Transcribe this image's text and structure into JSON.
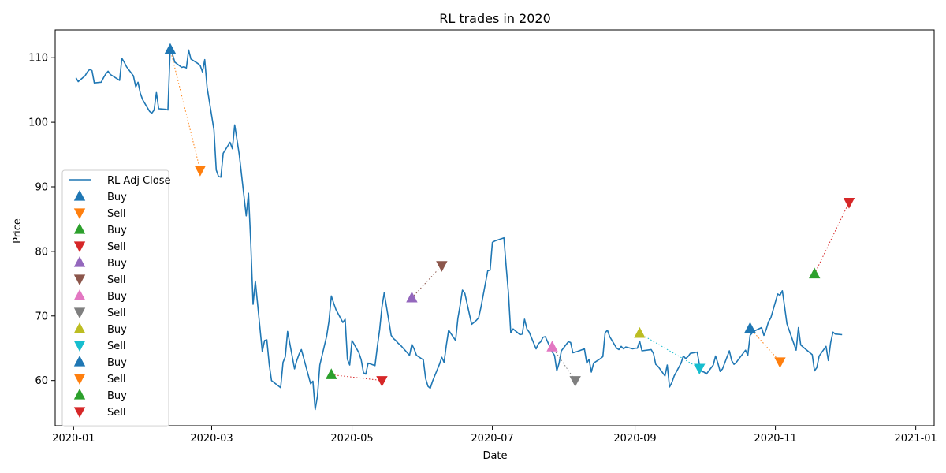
{
  "chart_data": {
    "type": "line",
    "title": "RL trades in 2020",
    "xlabel": "Date",
    "ylabel": "Price",
    "xlim": [
      "2019-12-24",
      "2021-01-09"
    ],
    "ylim": [
      53,
      114.3
    ],
    "grid": false,
    "legend_position": "left",
    "x_ticks": [
      "2020-01-01",
      "2020-03-01",
      "2020-05-01",
      "2020-07-01",
      "2020-09-01",
      "2020-11-01",
      "2021-01-01"
    ],
    "x_tick_labels": [
      "2020-01",
      "2020-03",
      "2020-05",
      "2020-07",
      "2020-09",
      "2020-11",
      "2021-01"
    ],
    "y_ticks": [
      60,
      70,
      80,
      90,
      100,
      110
    ],
    "line_series": {
      "name": "RL Adj Close",
      "color": "#1f77b4",
      "points": [
        [
          "2020-01-02",
          106.9
        ],
        [
          "2020-01-03",
          106.3
        ],
        [
          "2020-01-06",
          107.2
        ],
        [
          "2020-01-07",
          107.8
        ],
        [
          "2020-01-08",
          108.2
        ],
        [
          "2020-01-09",
          108.0
        ],
        [
          "2020-01-10",
          106.1
        ],
        [
          "2020-01-13",
          106.2
        ],
        [
          "2020-01-14",
          106.9
        ],
        [
          "2020-01-15",
          107.5
        ],
        [
          "2020-01-16",
          107.9
        ],
        [
          "2020-01-17",
          107.4
        ],
        [
          "2020-01-21",
          106.5
        ],
        [
          "2020-01-22",
          109.9
        ],
        [
          "2020-01-23",
          109.3
        ],
        [
          "2020-01-24",
          108.6
        ],
        [
          "2020-01-27",
          107.2
        ],
        [
          "2020-01-28",
          105.5
        ],
        [
          "2020-01-29",
          106.2
        ],
        [
          "2020-01-30",
          104.5
        ],
        [
          "2020-01-31",
          103.5
        ],
        [
          "2020-02-03",
          101.7
        ],
        [
          "2020-02-04",
          101.4
        ],
        [
          "2020-02-05",
          101.9
        ],
        [
          "2020-02-06",
          104.6
        ],
        [
          "2020-02-07",
          102.1
        ],
        [
          "2020-02-10",
          102.0
        ],
        [
          "2020-02-11",
          101.9
        ],
        [
          "2020-02-12",
          111.3
        ],
        [
          "2020-02-13",
          110.5
        ],
        [
          "2020-02-14",
          109.3
        ],
        [
          "2020-02-17",
          108.5
        ],
        [
          "2020-02-18",
          108.6
        ],
        [
          "2020-02-19",
          108.4
        ],
        [
          "2020-02-20",
          111.2
        ],
        [
          "2020-02-21",
          109.8
        ],
        [
          "2020-02-24",
          109.1
        ],
        [
          "2020-02-25",
          108.8
        ],
        [
          "2020-02-26",
          107.8
        ],
        [
          "2020-02-27",
          109.7
        ],
        [
          "2020-02-28",
          105.5
        ],
        [
          "2020-03-02",
          98.8
        ],
        [
          "2020-03-03",
          92.6
        ],
        [
          "2020-03-04",
          91.6
        ],
        [
          "2020-03-05",
          91.5
        ],
        [
          "2020-03-06",
          95.2
        ],
        [
          "2020-03-09",
          96.9
        ],
        [
          "2020-03-10",
          95.9
        ],
        [
          "2020-03-11",
          99.6
        ],
        [
          "2020-03-12",
          97.3
        ],
        [
          "2020-03-13",
          95.0
        ],
        [
          "2020-03-16",
          85.5
        ],
        [
          "2020-03-17",
          89.0
        ],
        [
          "2020-03-18",
          81.3
        ],
        [
          "2020-03-19",
          71.8
        ],
        [
          "2020-03-20",
          75.4
        ],
        [
          "2020-03-23",
          64.5
        ],
        [
          "2020-03-24",
          66.2
        ],
        [
          "2020-03-25",
          66.3
        ],
        [
          "2020-03-26",
          62.5
        ],
        [
          "2020-03-27",
          60.0
        ],
        [
          "2020-03-31",
          58.9
        ],
        [
          "2020-04-01",
          62.8
        ],
        [
          "2020-04-02",
          63.7
        ],
        [
          "2020-04-03",
          67.6
        ],
        [
          "2020-04-06",
          61.8
        ],
        [
          "2020-04-07",
          63.1
        ],
        [
          "2020-04-08",
          64.1
        ],
        [
          "2020-04-09",
          64.8
        ],
        [
          "2020-04-13",
          59.5
        ],
        [
          "2020-04-14",
          59.9
        ],
        [
          "2020-04-15",
          55.5
        ],
        [
          "2020-04-16",
          57.6
        ],
        [
          "2020-04-17",
          62.4
        ],
        [
          "2020-04-20",
          66.9
        ],
        [
          "2020-04-21",
          69.2
        ],
        [
          "2020-04-22",
          73.1
        ],
        [
          "2020-04-23",
          72.0
        ],
        [
          "2020-04-24",
          71.0
        ],
        [
          "2020-04-27",
          69.0
        ],
        [
          "2020-04-28",
          69.5
        ],
        [
          "2020-04-29",
          63.3
        ],
        [
          "2020-04-30",
          62.4
        ],
        [
          "2020-05-01",
          66.2
        ],
        [
          "2020-05-04",
          64.3
        ],
        [
          "2020-05-05",
          63.2
        ],
        [
          "2020-05-06",
          61.2
        ],
        [
          "2020-05-07",
          61.0
        ],
        [
          "2020-05-08",
          62.7
        ],
        [
          "2020-05-11",
          62.3
        ],
        [
          "2020-05-12",
          65.2
        ],
        [
          "2020-05-13",
          67.9
        ],
        [
          "2020-05-14",
          71.4
        ],
        [
          "2020-05-15",
          73.6
        ],
        [
          "2020-05-18",
          67.0
        ],
        [
          "2020-05-19",
          66.5
        ],
        [
          "2020-05-20",
          66.2
        ],
        [
          "2020-05-21",
          65.8
        ],
        [
          "2020-05-22",
          65.5
        ],
        [
          "2020-05-26",
          63.9
        ],
        [
          "2020-05-27",
          65.6
        ],
        [
          "2020-05-28",
          64.9
        ],
        [
          "2020-05-29",
          63.9
        ],
        [
          "2020-06-01",
          63.2
        ],
        [
          "2020-06-02",
          60.3
        ],
        [
          "2020-06-03",
          59.1
        ],
        [
          "2020-06-04",
          58.8
        ],
        [
          "2020-06-05",
          59.9
        ],
        [
          "2020-06-08",
          62.5
        ],
        [
          "2020-06-09",
          63.6
        ],
        [
          "2020-06-10",
          62.8
        ],
        [
          "2020-06-11",
          65.5
        ],
        [
          "2020-06-12",
          67.8
        ],
        [
          "2020-06-15",
          66.2
        ],
        [
          "2020-06-16",
          69.6
        ],
        [
          "2020-06-17",
          71.7
        ],
        [
          "2020-06-18",
          74.0
        ],
        [
          "2020-06-19",
          73.5
        ],
        [
          "2020-06-22",
          68.7
        ],
        [
          "2020-06-23",
          69.0
        ],
        [
          "2020-06-24",
          69.3
        ],
        [
          "2020-06-25",
          69.7
        ],
        [
          "2020-06-26",
          71.3
        ],
        [
          "2020-06-29",
          77.0
        ],
        [
          "2020-06-30",
          77.1
        ],
        [
          "2020-07-01",
          81.4
        ],
        [
          "2020-07-02",
          81.6
        ],
        [
          "2020-07-06",
          82.1
        ],
        [
          "2020-07-07",
          77.6
        ],
        [
          "2020-07-08",
          73.5
        ],
        [
          "2020-07-09",
          67.4
        ],
        [
          "2020-07-10",
          68.0
        ],
        [
          "2020-07-13",
          67.1
        ],
        [
          "2020-07-14",
          67.2
        ],
        [
          "2020-07-15",
          69.5
        ],
        [
          "2020-07-16",
          68.0
        ],
        [
          "2020-07-17",
          67.5
        ],
        [
          "2020-07-20",
          64.9
        ],
        [
          "2020-07-21",
          65.7
        ],
        [
          "2020-07-22",
          66.0
        ],
        [
          "2020-07-23",
          66.7
        ],
        [
          "2020-07-24",
          66.8
        ],
        [
          "2020-07-27",
          64.4
        ],
        [
          "2020-07-28",
          63.9
        ],
        [
          "2020-07-29",
          61.5
        ],
        [
          "2020-07-30",
          62.7
        ],
        [
          "2020-07-31",
          64.6
        ],
        [
          "2020-08-03",
          66.0
        ],
        [
          "2020-08-04",
          65.9
        ],
        [
          "2020-08-05",
          64.3
        ],
        [
          "2020-08-06",
          64.4
        ],
        [
          "2020-08-07",
          64.5
        ],
        [
          "2020-08-10",
          64.9
        ],
        [
          "2020-08-11",
          62.7
        ],
        [
          "2020-08-12",
          63.3
        ],
        [
          "2020-08-13",
          61.3
        ],
        [
          "2020-08-14",
          62.7
        ],
        [
          "2020-08-17",
          63.4
        ],
        [
          "2020-08-18",
          63.7
        ],
        [
          "2020-08-19",
          67.4
        ],
        [
          "2020-08-20",
          67.8
        ],
        [
          "2020-08-21",
          66.8
        ],
        [
          "2020-08-24",
          65.0
        ],
        [
          "2020-08-25",
          64.8
        ],
        [
          "2020-08-26",
          65.3
        ],
        [
          "2020-08-27",
          64.9
        ],
        [
          "2020-08-28",
          65.2
        ],
        [
          "2020-08-31",
          64.9
        ],
        [
          "2020-09-01",
          65.0
        ],
        [
          "2020-09-02",
          65.0
        ],
        [
          "2020-09-03",
          66.1
        ],
        [
          "2020-09-04",
          64.6
        ],
        [
          "2020-09-08",
          64.8
        ],
        [
          "2020-09-09",
          64.2
        ],
        [
          "2020-09-10",
          62.5
        ],
        [
          "2020-09-11",
          62.2
        ],
        [
          "2020-09-14",
          60.7
        ],
        [
          "2020-09-15",
          62.4
        ],
        [
          "2020-09-16",
          59.0
        ],
        [
          "2020-09-17",
          59.7
        ],
        [
          "2020-09-18",
          60.7
        ],
        [
          "2020-09-21",
          62.7
        ],
        [
          "2020-09-22",
          63.8
        ],
        [
          "2020-09-23",
          63.4
        ],
        [
          "2020-09-24",
          63.7
        ],
        [
          "2020-09-25",
          64.2
        ],
        [
          "2020-09-28",
          64.4
        ],
        [
          "2020-09-29",
          62.4
        ],
        [
          "2020-09-30",
          61.4
        ],
        [
          "2020-10-01",
          61.3
        ],
        [
          "2020-10-02",
          61.0
        ],
        [
          "2020-10-05",
          62.4
        ],
        [
          "2020-10-06",
          63.8
        ],
        [
          "2020-10-07",
          62.7
        ],
        [
          "2020-10-08",
          61.4
        ],
        [
          "2020-10-09",
          61.8
        ],
        [
          "2020-10-12",
          64.6
        ],
        [
          "2020-10-13",
          63.1
        ],
        [
          "2020-10-14",
          62.5
        ],
        [
          "2020-10-15",
          62.8
        ],
        [
          "2020-10-16",
          63.3
        ],
        [
          "2020-10-19",
          64.7
        ],
        [
          "2020-10-20",
          63.9
        ],
        [
          "2020-10-21",
          67.0
        ],
        [
          "2020-10-22",
          67.4
        ],
        [
          "2020-10-23",
          67.7
        ],
        [
          "2020-10-26",
          68.2
        ],
        [
          "2020-10-27",
          67.0
        ],
        [
          "2020-10-28",
          67.9
        ],
        [
          "2020-10-29",
          69.1
        ],
        [
          "2020-10-30",
          69.7
        ],
        [
          "2020-11-02",
          73.4
        ],
        [
          "2020-11-03",
          73.2
        ],
        [
          "2020-11-04",
          73.9
        ],
        [
          "2020-11-05",
          71.4
        ],
        [
          "2020-11-06",
          68.8
        ],
        [
          "2020-11-09",
          65.7
        ],
        [
          "2020-11-10",
          64.7
        ],
        [
          "2020-11-11",
          68.2
        ],
        [
          "2020-11-12",
          65.5
        ],
        [
          "2020-11-13",
          65.2
        ],
        [
          "2020-11-16",
          64.3
        ],
        [
          "2020-11-17",
          64.0
        ],
        [
          "2020-11-18",
          61.5
        ],
        [
          "2020-11-19",
          62.0
        ],
        [
          "2020-11-20",
          63.8
        ],
        [
          "2020-11-23",
          65.3
        ],
        [
          "2020-11-24",
          63.1
        ],
        [
          "2020-11-25",
          65.9
        ],
        [
          "2020-11-26",
          67.5
        ],
        [
          "2020-11-27",
          67.2
        ],
        [
          "2020-11-30",
          67.1
        ]
      ]
    },
    "markers": [
      {
        "name": "Buy",
        "kind": "buy",
        "color": "#1f77b4",
        "date": "2020-02-12",
        "price": 111.3
      },
      {
        "name": "Sell",
        "kind": "sell",
        "color": "#ff7f0e",
        "date": "2020-02-25",
        "price": 92.6
      },
      {
        "name": "Buy",
        "kind": "buy",
        "color": "#2ca02c",
        "date": "2020-04-22",
        "price": 60.9
      },
      {
        "name": "Sell",
        "kind": "sell",
        "color": "#d62728",
        "date": "2020-05-14",
        "price": 60.0
      },
      {
        "name": "Buy",
        "kind": "buy",
        "color": "#9467bd",
        "date": "2020-05-27",
        "price": 72.8
      },
      {
        "name": "Sell",
        "kind": "sell",
        "color": "#8c564b",
        "date": "2020-06-09",
        "price": 77.8
      },
      {
        "name": "Buy",
        "kind": "buy",
        "color": "#e377c2",
        "date": "2020-07-27",
        "price": 65.2
      },
      {
        "name": "Sell",
        "kind": "sell",
        "color": "#7f7f7f",
        "date": "2020-08-06",
        "price": 60.0
      },
      {
        "name": "Buy",
        "kind": "buy",
        "color": "#bcbd22",
        "date": "2020-09-03",
        "price": 67.3
      },
      {
        "name": "Sell",
        "kind": "sell",
        "color": "#17becf",
        "date": "2020-09-29",
        "price": 61.9
      },
      {
        "name": "Buy",
        "kind": "buy",
        "color": "#1f77b4",
        "date": "2020-10-21",
        "price": 68.1
      },
      {
        "name": "Sell",
        "kind": "sell",
        "color": "#ff7f0e",
        "date": "2020-11-03",
        "price": 62.9
      },
      {
        "name": "Buy",
        "kind": "buy",
        "color": "#2ca02c",
        "date": "2020-11-18",
        "price": 76.5
      },
      {
        "name": "Sell",
        "kind": "sell",
        "color": "#d62728",
        "date": "2020-12-03",
        "price": 87.6
      }
    ]
  }
}
